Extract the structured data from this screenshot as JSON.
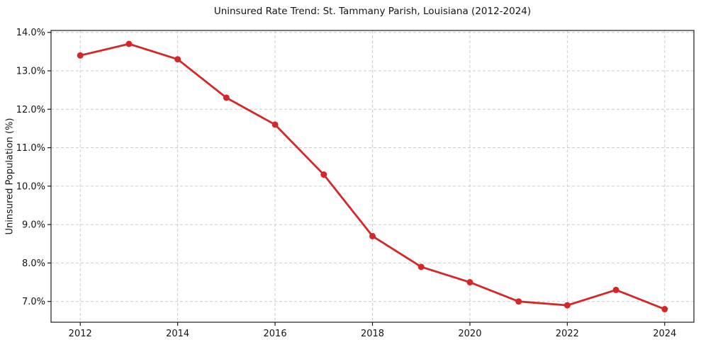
{
  "chart_data": {
    "type": "line",
    "title": "Uninsured Rate Trend: St. Tammany Parish, Louisiana (2012-2024)",
    "xlabel": "",
    "ylabel": "Uninsured Population (%)",
    "x": [
      2012,
      2013,
      2014,
      2015,
      2016,
      2017,
      2018,
      2019,
      2020,
      2021,
      2022,
      2023,
      2024
    ],
    "values": [
      13.4,
      13.7,
      13.3,
      12.3,
      11.6,
      10.3,
      8.7,
      7.9,
      7.5,
      7.0,
      6.9,
      7.3,
      6.8
    ],
    "line_color": "#d62728",
    "marker": "circle",
    "x_axis": {
      "range": [
        2011.4,
        2024.6
      ],
      "ticks": [
        2012,
        2014,
        2016,
        2018,
        2020,
        2022,
        2024
      ],
      "tick_labels": [
        "2012",
        "2014",
        "2016",
        "2018",
        "2020",
        "2022",
        "2024"
      ]
    },
    "y_axis": {
      "range": [
        6.46,
        14.05
      ],
      "ticks": [
        7,
        8,
        9,
        10,
        11,
        12,
        13,
        14
      ],
      "tick_labels": [
        "7.0%",
        "8.0%",
        "9.0%",
        "10.0%",
        "11.0%",
        "12.0%",
        "13.0%",
        "14.0%"
      ]
    },
    "grid": {
      "show": true,
      "style": "dashed",
      "color": "#cccccc"
    },
    "axis_color": "#1a1a1a",
    "legend_position": "none"
  }
}
